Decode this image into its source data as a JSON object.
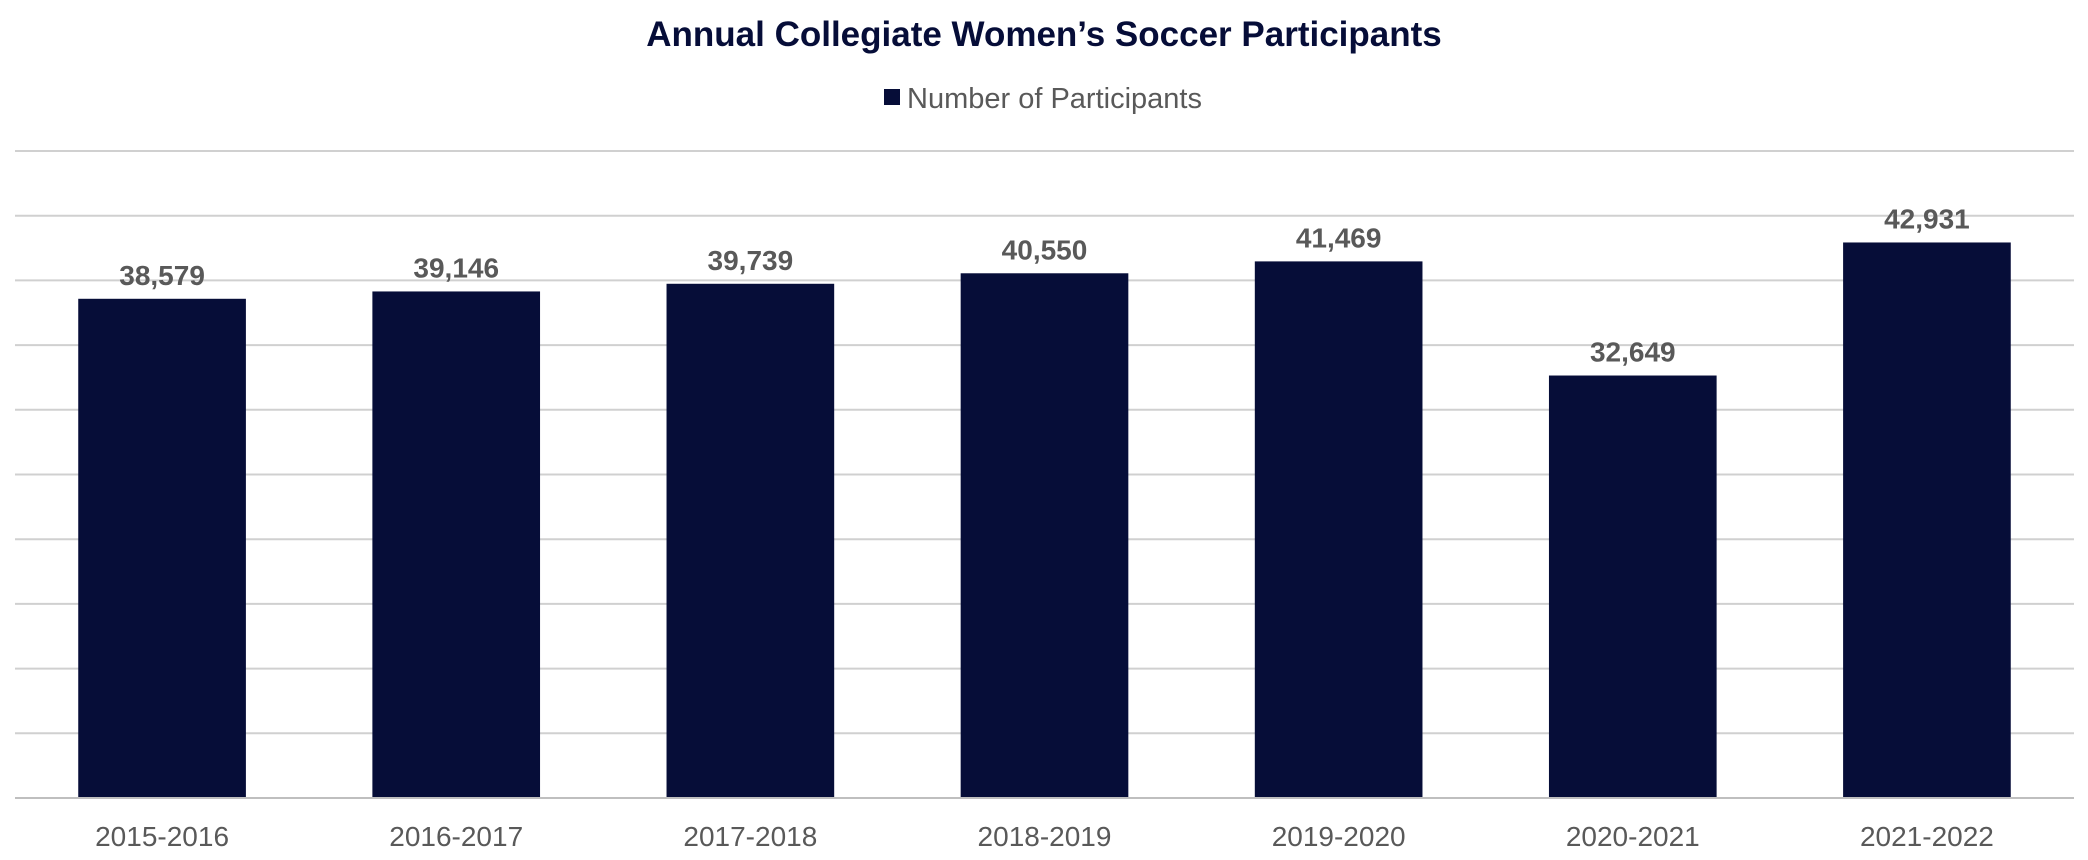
{
  "chart_data": {
    "type": "bar",
    "title": "Annual Collegiate Women’s Soccer Participants",
    "xlabel": "",
    "ylabel": "",
    "categories": [
      "2015-2016",
      "2016-2017",
      "2017-2018",
      "2018-2019",
      "2019-2020",
      "2020-2021",
      "2021-2022"
    ],
    "series": [
      {
        "name": "Number of Participants",
        "values": [
          38579,
          39146,
          39739,
          40550,
          41469,
          32649,
          42931
        ],
        "labels": [
          "38,579",
          "39,146",
          "39,739",
          "40,550",
          "41,469",
          "32,649",
          "42,931"
        ],
        "color": "#060d38"
      }
    ],
    "ylim": [
      0,
      50000
    ],
    "y_gridline_step": 5000,
    "y_tick_labels_shown": false,
    "grid": true,
    "legend_position": "top-center"
  }
}
